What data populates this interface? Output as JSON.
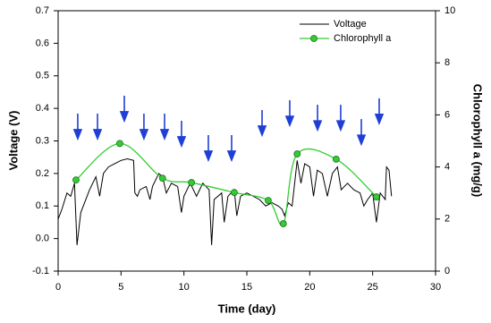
{
  "chart_data": {
    "type": "line",
    "xlabel": "Time (day)",
    "ylabel": "Voltage (V)",
    "y2label": "Chlorophyll a (mg/g)",
    "xlim": [
      0,
      30
    ],
    "xticks": [
      0,
      5,
      10,
      15,
      20,
      25,
      30
    ],
    "ylim": [
      -0.1,
      0.7
    ],
    "yticks": [
      -0.1,
      {
        "value": 0,
        "label": "0.0"
      },
      0.1,
      0.2,
      0.3,
      0.4,
      0.5,
      0.6,
      0.7
    ],
    "y2lim": [
      0,
      10
    ],
    "y2ticks": [
      0,
      2,
      4,
      6,
      8,
      10
    ],
    "legend": "upper right",
    "series": [
      {
        "name": "Voltage",
        "color": "#000000",
        "x": [
          0,
          0.3,
          0.7,
          1,
          1.3,
          1.5,
          1.8,
          2.5,
          3,
          3.3,
          3.6,
          4,
          4.5,
          5,
          5.5,
          6,
          6.1,
          6.3,
          6.5,
          7,
          7.3,
          7.5,
          8,
          8.3,
          8.6,
          9,
          9.5,
          9.8,
          10,
          10.5,
          11,
          11.5,
          12,
          12.2,
          12.4,
          13,
          13.2,
          13.5,
          14,
          14.2,
          14.5,
          15,
          15.5,
          16,
          16.5,
          17,
          17.5,
          17.8,
          18,
          18.3,
          18.6,
          19,
          19.3,
          19.6,
          20,
          20.3,
          20.6,
          21,
          21.4,
          21.8,
          22.2,
          22.5,
          23,
          23.5,
          24,
          24.3,
          24.6,
          25,
          25.3,
          25.6,
          26,
          26.1,
          26.3,
          26.5
        ],
        "values": [
          0.06,
          0.09,
          0.14,
          0.13,
          0.17,
          -0.02,
          0.08,
          0.15,
          0.19,
          0.13,
          0.2,
          0.22,
          0.23,
          0.24,
          0.245,
          0.24,
          0.14,
          0.13,
          0.15,
          0.16,
          0.12,
          0.16,
          0.2,
          0.19,
          0.14,
          0.17,
          0.16,
          0.08,
          0.13,
          0.17,
          0.13,
          0.17,
          0.15,
          -0.02,
          0.12,
          0.14,
          0.05,
          0.13,
          0.15,
          0.07,
          0.13,
          0.14,
          0.13,
          0.12,
          0.1,
          0.11,
          0.1,
          0.09,
          0.07,
          0.11,
          0.1,
          0.24,
          0.17,
          0.23,
          0.22,
          0.13,
          0.21,
          0.2,
          0.13,
          0.2,
          0.22,
          0.15,
          0.17,
          0.15,
          0.14,
          0.1,
          0.12,
          0.14,
          0.05,
          0.14,
          0.12,
          0.22,
          0.21,
          0.13
        ]
      },
      {
        "name": "Chlorophyll a",
        "color": "#33cc33",
        "axis": "y2",
        "x": [
          1.42,
          4.9,
          8.3,
          10.6,
          14.0,
          16.7,
          17.9,
          19.0,
          22.1,
          25.3
        ],
        "values": [
          3.5,
          4.9,
          3.57,
          3.4,
          3.02,
          2.71,
          1.82,
          4.5,
          4.3,
          2.85
        ]
      }
    ],
    "arrows": {
      "color": "#1f3fd6",
      "x": [
        1.56,
        3.13,
        5.26,
        6.82,
        8.46,
        9.81,
        11.94,
        13.79,
        16.21,
        18.41,
        20.62,
        22.46,
        24.1,
        25.52
      ],
      "y": [
        0.384,
        0.384,
        0.439,
        0.384,
        0.384,
        0.362,
        0.318,
        0.318,
        0.395,
        0.425,
        0.411,
        0.411,
        0.367,
        0.431
      ]
    }
  }
}
